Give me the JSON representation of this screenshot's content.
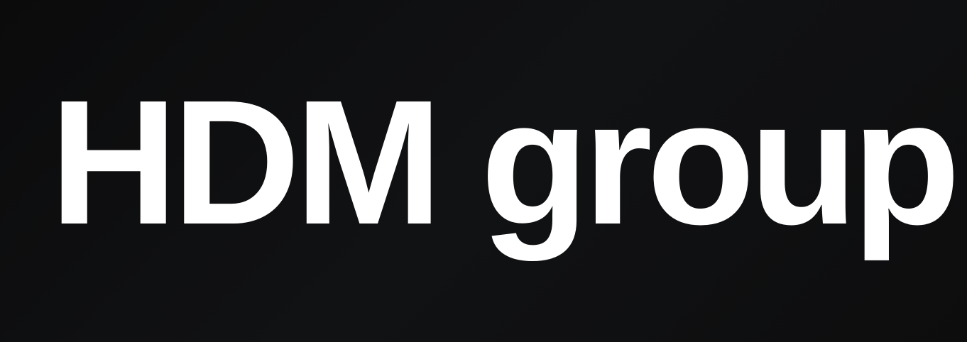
{
  "logo": {
    "text": "HDM group",
    "text_color": "#ffffff",
    "background_color": "#0e0e10"
  }
}
